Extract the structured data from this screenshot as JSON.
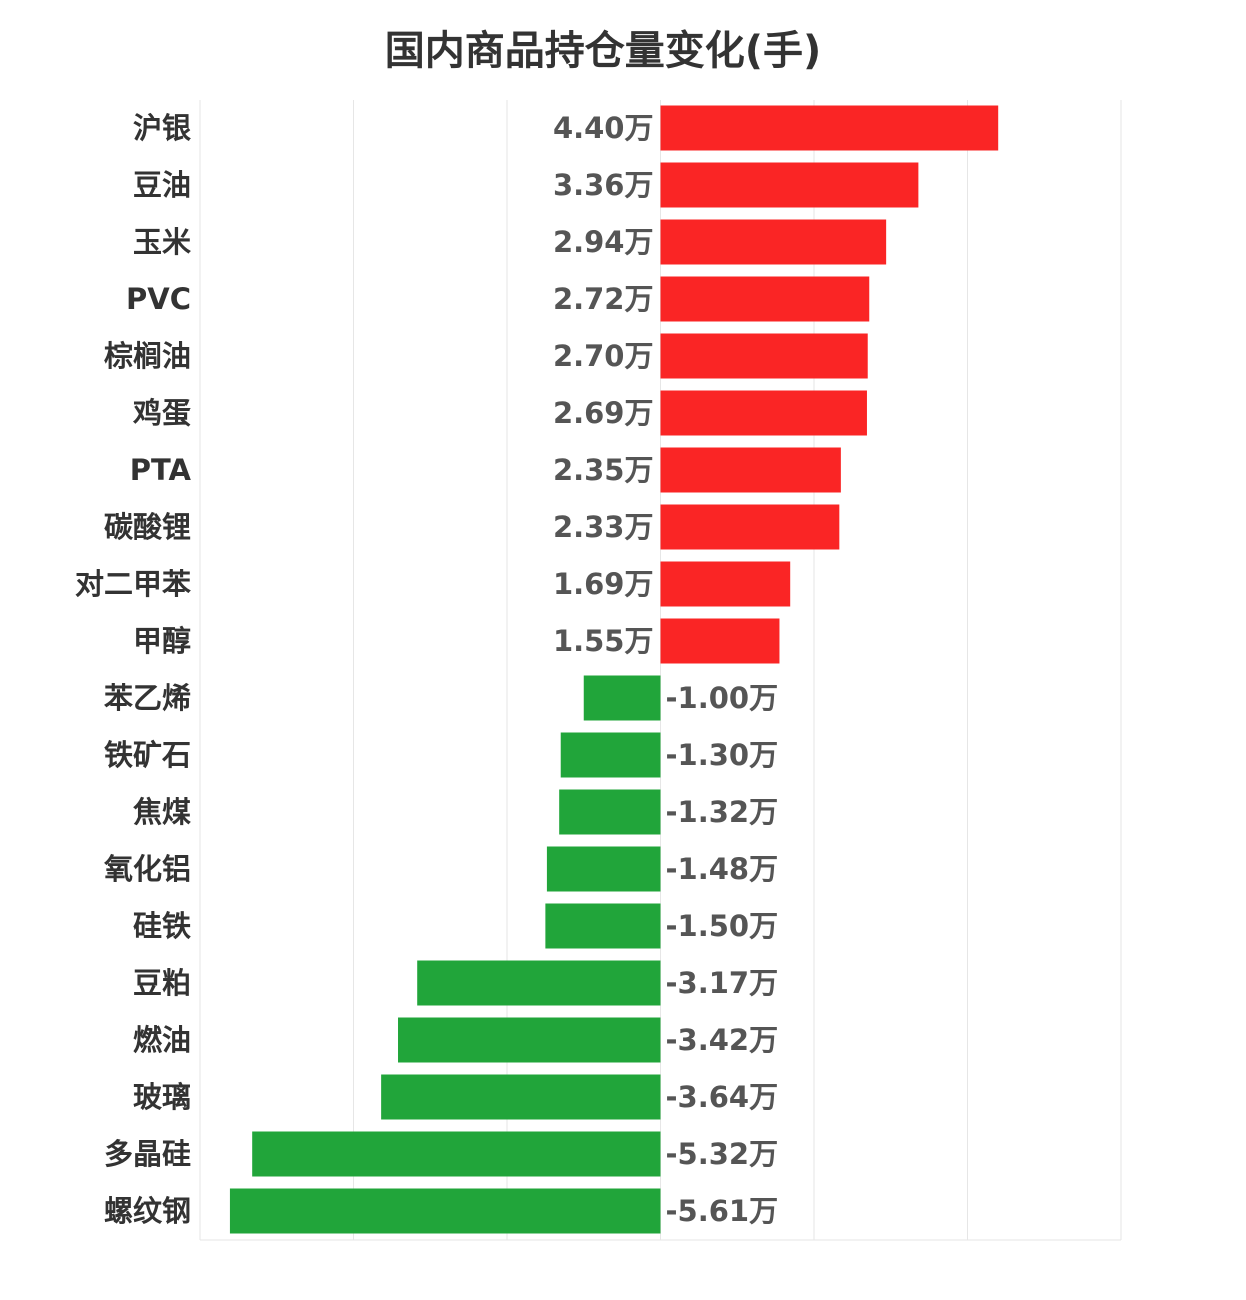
{
  "chart_data": {
    "type": "bar",
    "orientation": "horizontal",
    "title": "国内商品持仓量变化(手)",
    "unit": "万",
    "xlim": [
      -6,
      6
    ],
    "grid": true,
    "colors": {
      "positive": "#fa2525",
      "negative": "#21a53a"
    },
    "categories": [
      "沪银",
      "豆油",
      "玉米",
      "PVC",
      "棕榈油",
      "鸡蛋",
      "PTA",
      "碳酸锂",
      "对二甲苯",
      "甲醇",
      "苯乙烯",
      "铁矿石",
      "焦煤",
      "氧化铝",
      "硅铁",
      "豆粕",
      "燃油",
      "玻璃",
      "多晶硅",
      "螺纹钢"
    ],
    "values": [
      4.4,
      3.36,
      2.94,
      2.72,
      2.7,
      2.69,
      2.35,
      2.33,
      1.69,
      1.55,
      -1.0,
      -1.3,
      -1.32,
      -1.48,
      -1.5,
      -3.17,
      -3.42,
      -3.64,
      -5.32,
      -5.61
    ],
    "value_labels": [
      "4.40万",
      "3.36万",
      "2.94万",
      "2.72万",
      "2.70万",
      "2.69万",
      "2.35万",
      "2.33万",
      "1.69万",
      "1.55万",
      "-1.00万",
      "-1.30万",
      "-1.32万",
      "-1.48万",
      "-1.50万",
      "-3.17万",
      "-3.42万",
      "-3.64万",
      "-5.32万",
      "-5.61万"
    ]
  }
}
